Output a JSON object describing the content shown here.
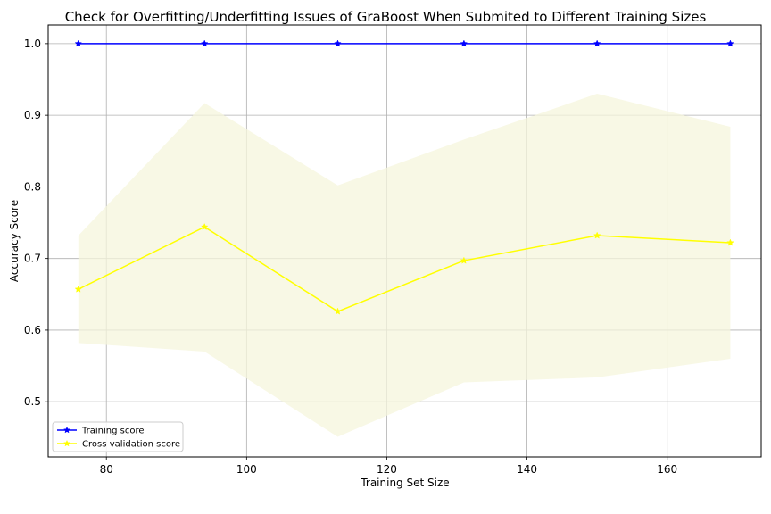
{
  "chart_data": {
    "type": "line",
    "title": "Check for Overfitting/Underfitting Issues of GraBoost When Submited to Different Training Sizes",
    "xlabel": "Training Set Size",
    "ylabel": "Accuracy Score",
    "xlim": [
      71.7,
      173.4
    ],
    "ylim": [
      0.423,
      1.026
    ],
    "x_ticks": [
      80,
      100,
      120,
      140,
      160
    ],
    "y_ticks": [
      0.5,
      0.6,
      0.7,
      0.8,
      0.9,
      1.0
    ],
    "x": [
      76,
      94,
      113,
      131,
      150,
      169
    ],
    "grid": true,
    "legend_position": "lower-left",
    "series": [
      {
        "name": "Training score",
        "color": "#0000ff",
        "marker": "star",
        "values": [
          1.0,
          1.0,
          1.0,
          1.0,
          1.0,
          1.0
        ]
      },
      {
        "name": "Cross-validation score",
        "color": "#ffff00",
        "marker": "star",
        "values": [
          0.657,
          0.744,
          0.626,
          0.697,
          0.732,
          0.722
        ],
        "band_lower": [
          0.582,
          0.57,
          0.451,
          0.527,
          0.534,
          0.56
        ],
        "band_upper": [
          0.732,
          0.917,
          0.802,
          0.866,
          0.93,
          0.884
        ],
        "band_color": "#f5f5dc"
      }
    ]
  }
}
